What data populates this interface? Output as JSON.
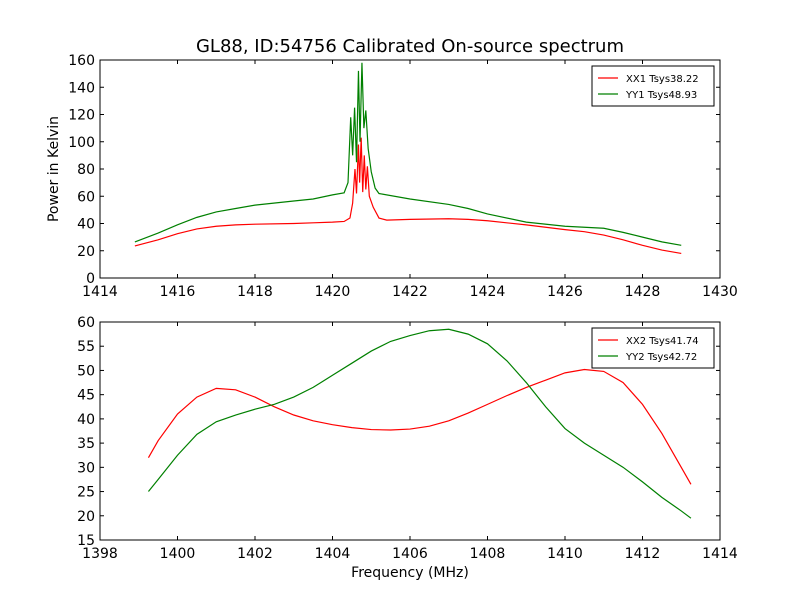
{
  "figure": {
    "title": "GL88, ID:54756 Calibrated On-source spectrum",
    "ylabel": "Power in Kelvin",
    "xlabel": "Frequency (MHz)"
  },
  "chart_data": [
    {
      "type": "line",
      "title": "GL88, ID:54756 Calibrated On-source spectrum",
      "xlabel": "",
      "ylabel": "Power in Kelvin",
      "xlim": [
        1414,
        1430
      ],
      "ylim": [
        0,
        160
      ],
      "xticks": [
        1414,
        1416,
        1418,
        1420,
        1422,
        1424,
        1426,
        1428,
        1430
      ],
      "yticks": [
        0,
        20,
        40,
        60,
        80,
        100,
        120,
        140,
        160
      ],
      "grid": false,
      "legend": "top-right",
      "series": [
        {
          "name": "XX1 Tsys38.22",
          "color": "#ff0000",
          "points": [
            [
              1414.9,
              23.5
            ],
            [
              1415.5,
              28
            ],
            [
              1416,
              32.5
            ],
            [
              1416.5,
              36
            ],
            [
              1417,
              38
            ],
            [
              1417.5,
              39
            ],
            [
              1418,
              39.5
            ],
            [
              1419,
              40
            ],
            [
              1419.5,
              40.5
            ],
            [
              1420,
              41
            ],
            [
              1420.3,
              41.5
            ],
            [
              1420.45,
              44
            ],
            [
              1420.52,
              55
            ],
            [
              1420.58,
              80
            ],
            [
              1420.62,
              62
            ],
            [
              1420.67,
              98
            ],
            [
              1420.7,
              70
            ],
            [
              1420.74,
              103
            ],
            [
              1420.78,
              63
            ],
            [
              1420.82,
              90
            ],
            [
              1420.86,
              65
            ],
            [
              1420.9,
              82
            ],
            [
              1420.95,
              60
            ],
            [
              1421.05,
              52
            ],
            [
              1421.2,
              44
            ],
            [
              1421.4,
              42.5
            ],
            [
              1422,
              43
            ],
            [
              1423,
              43.5
            ],
            [
              1423.5,
              43
            ],
            [
              1424,
              42
            ],
            [
              1425,
              39
            ],
            [
              1426,
              35.5
            ],
            [
              1426.5,
              34
            ],
            [
              1427,
              31.5
            ],
            [
              1427.5,
              28
            ],
            [
              1428,
              24
            ],
            [
              1428.5,
              20.5
            ],
            [
              1429,
              18
            ]
          ]
        },
        {
          "name": "YY1 Tsys48.93",
          "color": "#008000",
          "points": [
            [
              1414.9,
              26.5
            ],
            [
              1415.5,
              33
            ],
            [
              1416,
              39
            ],
            [
              1416.5,
              44.5
            ],
            [
              1417,
              48.5
            ],
            [
              1417.5,
              51
            ],
            [
              1418,
              53.5
            ],
            [
              1419,
              56.5
            ],
            [
              1419.5,
              58
            ],
            [
              1420,
              61
            ],
            [
              1420.3,
              62.5
            ],
            [
              1420.4,
              70
            ],
            [
              1420.47,
              118
            ],
            [
              1420.52,
              90
            ],
            [
              1420.57,
              125
            ],
            [
              1420.62,
              85
            ],
            [
              1420.67,
              152
            ],
            [
              1420.71,
              100
            ],
            [
              1420.76,
              158
            ],
            [
              1420.81,
              110
            ],
            [
              1420.86,
              123
            ],
            [
              1420.92,
              95
            ],
            [
              1421,
              78
            ],
            [
              1421.1,
              66
            ],
            [
              1421.2,
              62
            ],
            [
              1422,
              58
            ],
            [
              1423,
              54
            ],
            [
              1423.5,
              51
            ],
            [
              1424,
              47
            ],
            [
              1425,
              41
            ],
            [
              1426,
              38
            ],
            [
              1427,
              36.5
            ],
            [
              1427.5,
              33.5
            ],
            [
              1428,
              30
            ],
            [
              1428.5,
              26.5
            ],
            [
              1429,
              24
            ]
          ]
        }
      ]
    },
    {
      "type": "line",
      "title": "",
      "xlabel": "Frequency (MHz)",
      "ylabel": "",
      "xlim": [
        1398,
        1414
      ],
      "ylim": [
        15,
        60
      ],
      "xticks": [
        1398,
        1400,
        1402,
        1404,
        1406,
        1408,
        1410,
        1412,
        1414
      ],
      "yticks": [
        15,
        20,
        25,
        30,
        35,
        40,
        45,
        50,
        55,
        60
      ],
      "grid": false,
      "legend": "top-right",
      "series": [
        {
          "name": "XX2 Tsys41.74",
          "color": "#ff0000",
          "points": [
            [
              1399.25,
              32
            ],
            [
              1399.5,
              35.5
            ],
            [
              1400,
              41
            ],
            [
              1400.5,
              44.5
            ],
            [
              1401,
              46.3
            ],
            [
              1401.5,
              46
            ],
            [
              1402,
              44.5
            ],
            [
              1402.5,
              42.5
            ],
            [
              1403,
              40.8
            ],
            [
              1403.5,
              39.6
            ],
            [
              1404,
              38.8
            ],
            [
              1404.5,
              38.2
            ],
            [
              1405,
              37.8
            ],
            [
              1405.5,
              37.7
            ],
            [
              1406,
              37.9
            ],
            [
              1406.5,
              38.5
            ],
            [
              1407,
              39.6
            ],
            [
              1407.5,
              41.2
            ],
            [
              1408,
              43
            ],
            [
              1408.5,
              44.8
            ],
            [
              1409,
              46.5
            ],
            [
              1409.5,
              48
            ],
            [
              1410,
              49.5
            ],
            [
              1410.5,
              50.2
            ],
            [
              1411,
              49.8
            ],
            [
              1411.5,
              47.5
            ],
            [
              1412,
              43
            ],
            [
              1412.5,
              37
            ],
            [
              1413,
              30
            ],
            [
              1413.25,
              26.5
            ]
          ]
        },
        {
          "name": "YY2 Tsys42.72",
          "color": "#008000",
          "points": [
            [
              1399.25,
              25
            ],
            [
              1399.5,
              27.5
            ],
            [
              1400,
              32.5
            ],
            [
              1400.5,
              36.8
            ],
            [
              1401,
              39.4
            ],
            [
              1401.5,
              40.8
            ],
            [
              1402,
              42
            ],
            [
              1402.5,
              43
            ],
            [
              1403,
              44.5
            ],
            [
              1403.5,
              46.5
            ],
            [
              1404,
              49
            ],
            [
              1404.5,
              51.5
            ],
            [
              1405,
              54
            ],
            [
              1405.5,
              56
            ],
            [
              1406,
              57.2
            ],
            [
              1406.5,
              58.2
            ],
            [
              1407,
              58.5
            ],
            [
              1407.5,
              57.5
            ],
            [
              1408,
              55.5
            ],
            [
              1408.5,
              52
            ],
            [
              1409,
              47.5
            ],
            [
              1409.5,
              42.5
            ],
            [
              1410,
              38
            ],
            [
              1410.5,
              35
            ],
            [
              1411,
              32.5
            ],
            [
              1411.5,
              30
            ],
            [
              1412,
              27
            ],
            [
              1412.5,
              23.8
            ],
            [
              1413,
              21
            ],
            [
              1413.25,
              19.5
            ]
          ]
        }
      ]
    }
  ]
}
